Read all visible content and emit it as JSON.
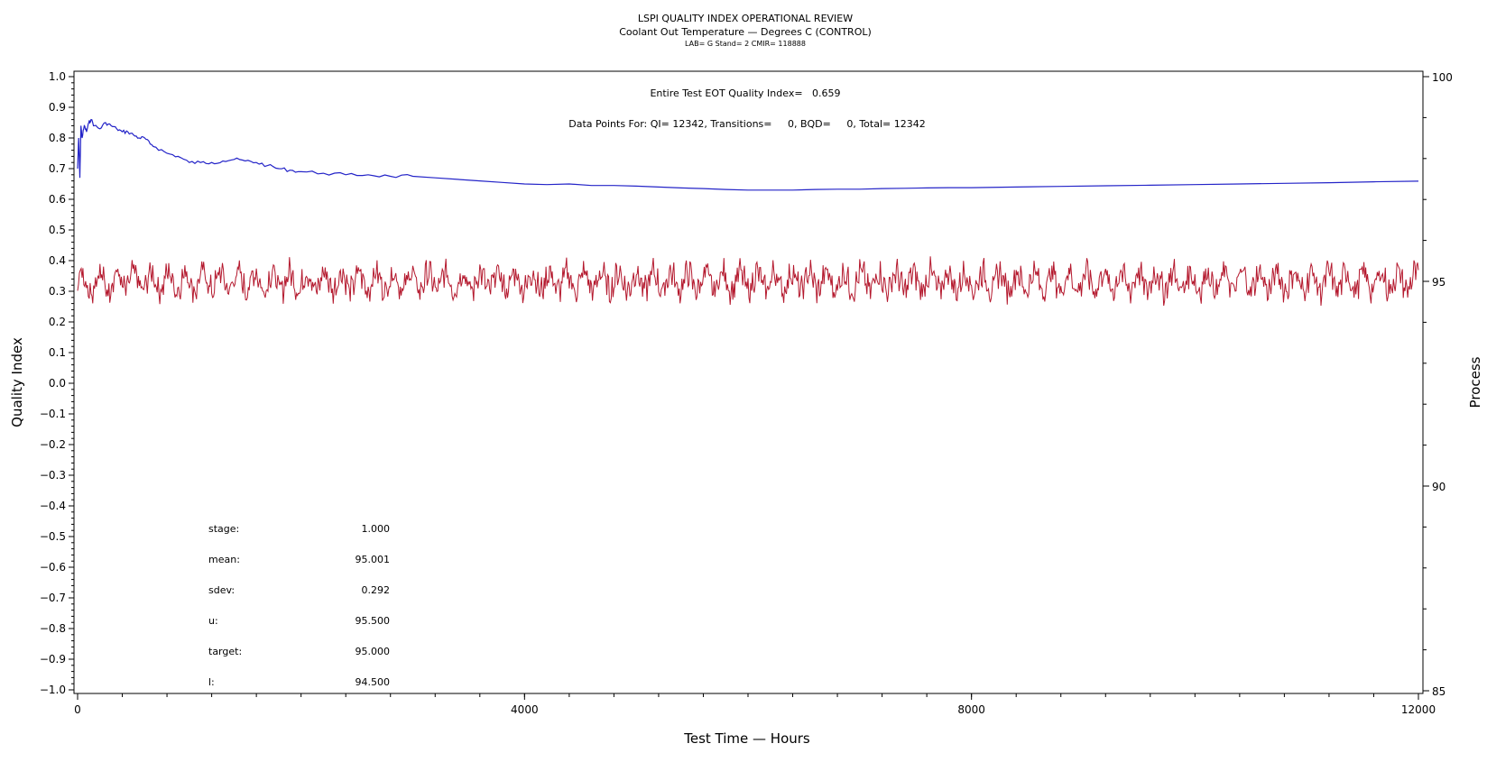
{
  "chart_data": {
    "type": "line",
    "title": "LSPI QUALITY INDEX OPERATIONAL REVIEW",
    "subtitle": "Coolant Out Temperature — Degrees C (CONTROL)",
    "subtitle2": "LAB= G Stand= 2 CMIR= 118888",
    "xlabel": "Test Time — Hours",
    "ylabel_left": "Quality Index",
    "ylabel_right": "Process",
    "xlim": [
      0,
      12000
    ],
    "ylim_left": [
      -1.0,
      1.0
    ],
    "ylim_right": [
      85,
      100
    ],
    "x_ticks": [
      "0",
      "4000",
      "8000",
      "12000"
    ],
    "y_left_ticks": [
      "1.0",
      "0.9",
      "0.8",
      "0.7",
      "0.6",
      "0.5",
      "0.4",
      "0.3",
      "0.2",
      "0.1",
      "0.0",
      "−0.1",
      "−0.2",
      "−0.3",
      "−0.4",
      "−0.5",
      "−0.6",
      "−0.7",
      "−0.8",
      "−0.9",
      "−1.0"
    ],
    "y_right_ticks": [
      "100",
      "95",
      "90",
      "85"
    ],
    "annotations": {
      "qi_line": "Entire Test EOT Quality Index=   0.659",
      "points_line": "Data Points For: QI= 12342, Transitions=     0, BQD=     0, Total= 12342"
    },
    "stats": [
      {
        "label": "stage:",
        "value": "1.000"
      },
      {
        "label": "mean:",
        "value": "95.001"
      },
      {
        "label": "sdev:",
        "value": "0.292"
      },
      {
        "label": "u:",
        "value": "95.500"
      },
      {
        "label": "target:",
        "value": "95.000"
      },
      {
        "label": "l:",
        "value": "94.500"
      }
    ],
    "series": [
      {
        "axis": "left",
        "color": "#2424c8",
        "x": [
          0,
          10,
          20,
          30,
          40,
          60,
          80,
          100,
          120,
          150,
          200,
          250,
          300,
          350,
          400,
          450,
          500,
          550,
          600,
          650,
          700,
          800,
          900,
          1000,
          1100,
          1200,
          1300,
          1400,
          1500,
          1600,
          1700,
          1800,
          1900,
          2000,
          2200,
          2400,
          2600,
          2800,
          3000,
          3200,
          3400,
          3600,
          3800,
          4000,
          4200,
          4400,
          4600,
          4800,
          5000,
          5200,
          5400,
          5600,
          5800,
          6000,
          6200,
          6400,
          6600,
          6800,
          7000,
          7200,
          7400,
          7600,
          7800,
          8000,
          8400,
          8800,
          9200,
          9600,
          10000,
          10400,
          10800,
          11200,
          11600,
          12000
        ],
        "values": [
          0.7,
          0.8,
          0.67,
          0.84,
          0.8,
          0.84,
          0.82,
          0.85,
          0.86,
          0.84,
          0.83,
          0.85,
          0.84,
          0.83,
          0.82,
          0.82,
          0.81,
          0.8,
          0.8,
          0.78,
          0.77,
          0.75,
          0.74,
          0.72,
          0.72,
          0.72,
          0.725,
          0.73,
          0.725,
          0.72,
          0.71,
          0.7,
          0.695,
          0.69,
          0.685,
          0.68,
          0.68,
          0.675,
          0.675,
          0.67,
          0.665,
          0.66,
          0.655,
          0.65,
          0.648,
          0.65,
          0.645,
          0.645,
          0.643,
          0.64,
          0.637,
          0.635,
          0.632,
          0.63,
          0.63,
          0.63,
          0.632,
          0.633,
          0.633,
          0.635,
          0.636,
          0.637,
          0.638,
          0.638,
          0.64,
          0.642,
          0.644,
          0.646,
          0.648,
          0.65,
          0.652,
          0.654,
          0.657,
          0.659
        ]
      },
      {
        "axis": "right",
        "color": "#b4182d",
        "description_of_pattern": "noisy periodic oscillation",
        "center": 95.0,
        "amplitude": 0.5,
        "period_hours": 155,
        "min": 94.2,
        "max": 95.9
      }
    ],
    "grid": false,
    "legend": "none"
  }
}
